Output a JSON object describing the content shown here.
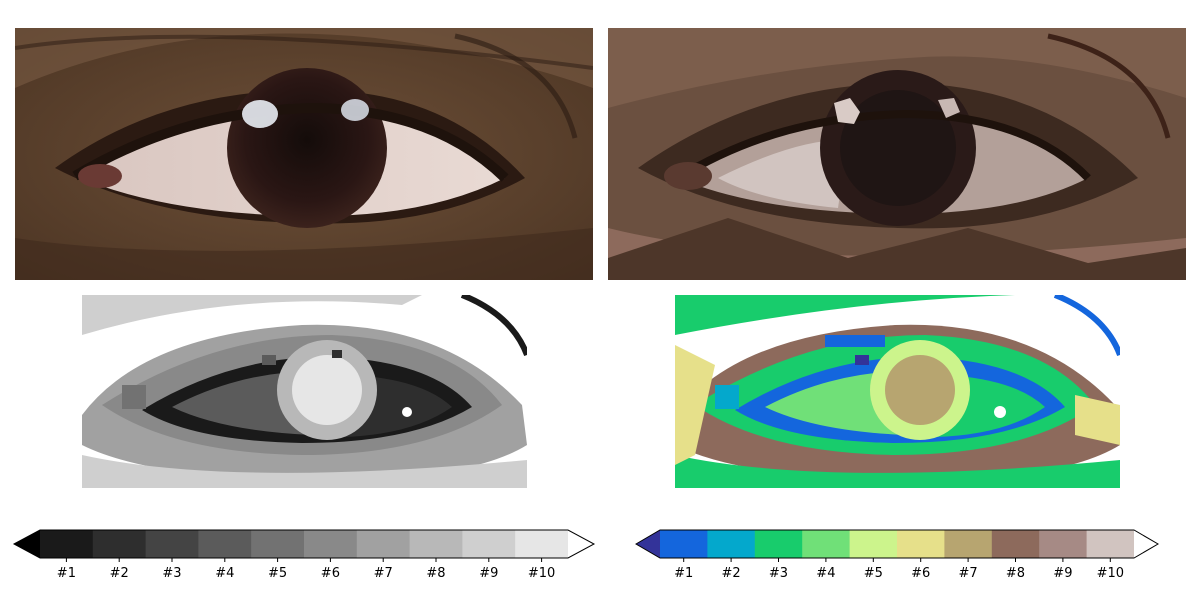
{
  "panels": {
    "photo": {
      "name": "eye-photo"
    },
    "poster": {
      "name": "eye-posterized"
    },
    "gray": {
      "name": "eye-gray-levels"
    },
    "terrain": {
      "name": "eye-terrain-levels"
    }
  },
  "colorbars": [
    {
      "id": "gray",
      "extend_left_color": "#000000",
      "extend_right_color": "#ffffff",
      "levels": [
        "#1",
        "#2",
        "#3",
        "#4",
        "#5",
        "#6",
        "#7",
        "#8",
        "#9",
        "#10"
      ],
      "colors": [
        "#1a1a1a",
        "#2e2e2e",
        "#444444",
        "#5b5b5b",
        "#727272",
        "#898989",
        "#a1a1a1",
        "#b8b8b8",
        "#cfcfcf",
        "#e6e6e6"
      ]
    },
    {
      "id": "terrain",
      "extend_left_color": "#333399",
      "extend_right_color": "#ffffff",
      "levels": [
        "#1",
        "#2",
        "#3",
        "#4",
        "#5",
        "#6",
        "#7",
        "#8",
        "#9",
        "#10"
      ],
      "colors": [
        "#1466dd",
        "#04a8cc",
        "#18cc6c",
        "#70e078",
        "#ccf48c",
        "#e6e08a",
        "#b7a570",
        "#8d6a5c",
        "#a68a85",
        "#d1c4c0"
      ]
    }
  ]
}
